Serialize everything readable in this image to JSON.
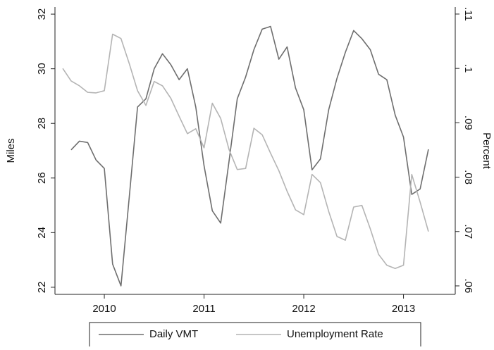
{
  "chart_data": {
    "type": "line",
    "x": [
      2009.583,
      2009.667,
      2009.75,
      2009.833,
      2009.917,
      2010,
      2010.083,
      2010.167,
      2010.25,
      2010.333,
      2010.417,
      2010.5,
      2010.583,
      2010.667,
      2010.75,
      2010.833,
      2010.917,
      2011,
      2011.083,
      2011.167,
      2011.25,
      2011.333,
      2011.417,
      2011.5,
      2011.583,
      2011.667,
      2011.75,
      2011.833,
      2011.917,
      2012,
      2012.083,
      2012.167,
      2012.25,
      2012.333,
      2012.417,
      2012.5,
      2012.583,
      2012.667,
      2012.75,
      2012.833,
      2012.917,
      2013,
      2013.083,
      2013.167,
      2013.25
    ],
    "series": [
      {
        "name": "Daily VMT",
        "color": "#6e6e6e",
        "axis": "y",
        "values": [
          null,
          27.03,
          27.35,
          27.3,
          26.66,
          26.35,
          22.85,
          22.05,
          25.3,
          28.6,
          28.9,
          30.0,
          30.55,
          30.15,
          29.6,
          30.0,
          28.6,
          26.45,
          24.8,
          24.35,
          26.6,
          28.9,
          29.7,
          30.7,
          31.45,
          31.55,
          30.35,
          30.8,
          29.3,
          28.5,
          26.3,
          26.7,
          28.5,
          29.65,
          30.6,
          31.4,
          31.1,
          30.7,
          29.8,
          29.6,
          28.3,
          27.5,
          25.4,
          25.6,
          27.05
        ]
      },
      {
        "name": "Unemployment Rate",
        "color": "#b4b4b4",
        "axis": "y2",
        "values": [
          0.1,
          0.0977,
          0.0968,
          0.0956,
          0.0955,
          0.0959,
          0.1063,
          0.1055,
          0.1009,
          0.0959,
          0.0932,
          0.0976,
          0.0968,
          0.0945,
          0.0912,
          0.088,
          0.0889,
          0.0854,
          0.0936,
          0.0908,
          0.0851,
          0.0814,
          0.0816,
          0.089,
          0.0878,
          0.0844,
          0.0812,
          0.0774,
          0.074,
          0.0731,
          0.0805,
          0.079,
          0.0737,
          0.0691,
          0.0684,
          0.0745,
          0.0748,
          0.0705,
          0.0658,
          0.0638,
          0.0632,
          0.0638,
          0.0805,
          0.0754,
          0.07
        ]
      }
    ],
    "xlim": [
      2009.505,
      2013.519
    ],
    "xticks": [
      2010,
      2011,
      2012,
      2013
    ],
    "ylabel": "Miles",
    "ylim": [
      21.74,
      32.26
    ],
    "yticks": [
      22,
      24,
      26,
      28,
      30,
      32
    ],
    "y2label": "Percent",
    "y2lim": [
      0.05844,
      0.11129
    ],
    "y2ticks": [
      {
        "value": 0.06,
        "label": ".06"
      },
      {
        "value": 0.07,
        "label": ".07"
      },
      {
        "value": 0.08,
        "label": ".08"
      },
      {
        "value": 0.09,
        "label": ".09"
      },
      {
        "value": 0.1,
        "label": ".1"
      },
      {
        "value": 0.11,
        "label": ".11"
      }
    ],
    "legend": "bottom"
  }
}
